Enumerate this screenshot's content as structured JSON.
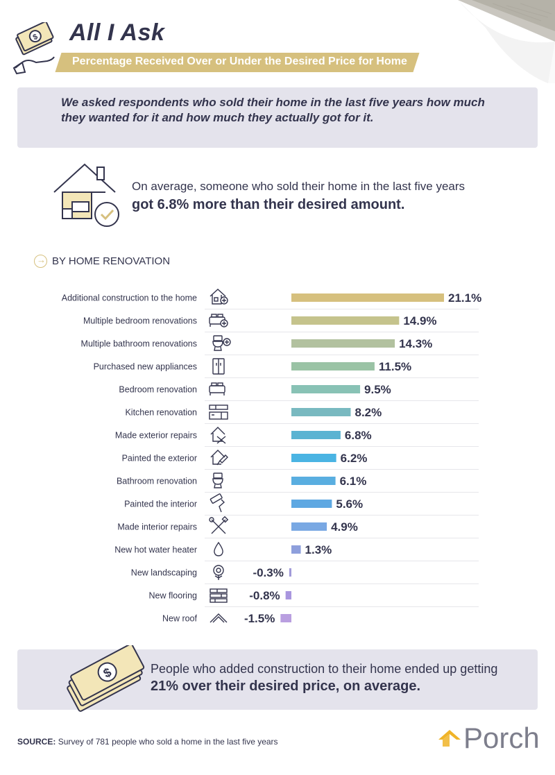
{
  "header": {
    "title": "All I Ask",
    "subtitle": "Percentage Received Over or Under the Desired Price for Home"
  },
  "intro": {
    "text": "We asked respondents who sold their home in the last five years how much they wanted for it and how much they actually got for it."
  },
  "average": {
    "line1": "On average, someone who sold their home in the last five years",
    "line2": "got 6.8% more than their desired amount."
  },
  "section": {
    "label": "BY HOME RENOVATION"
  },
  "chart_data": {
    "type": "bar",
    "orientation": "horizontal",
    "categories": [
      "Additional construction to the home",
      "Multiple bedroom renovations",
      "Multiple bathroom renovations",
      "Purchased new appliances",
      "Bedroom renovation",
      "Kitchen renovation",
      "Made exterior repairs",
      "Painted the exterior",
      "Bathroom renovation",
      "Painted the interior",
      "Made interior repairs",
      "New hot water heater",
      "New landscaping",
      "New flooring",
      "New roof"
    ],
    "values": [
      21.1,
      14.9,
      14.3,
      11.5,
      9.5,
      8.2,
      6.8,
      6.2,
      6.1,
      5.6,
      4.9,
      1.3,
      -0.3,
      -0.8,
      -1.5
    ],
    "value_labels": [
      "21.1%",
      "14.9%",
      "14.3%",
      "11.5%",
      "9.5%",
      "8.2%",
      "6.8%",
      "6.2%",
      "6.1%",
      "5.6%",
      "4.9%",
      "1.3%",
      "-0.3%",
      "-0.8%",
      "-1.5%"
    ],
    "icons": [
      "house-plus-icon",
      "bed-plus-icon",
      "toilet-plus-icon",
      "fridge-icon",
      "bed-icon",
      "kitchen-icon",
      "house-tools-icon",
      "house-brush-icon",
      "toilet-icon",
      "paint-roller-icon",
      "tools-icon",
      "water-drop-icon",
      "flower-icon",
      "flooring-icon",
      "roof-icon"
    ],
    "colors": [
      "#d6c07e",
      "#c5c38c",
      "#b2c19f",
      "#9ac3a5",
      "#88c2b5",
      "#79b9c0",
      "#5ab3d2",
      "#4ab4e3",
      "#59aee0",
      "#5ea8e2",
      "#79a8e3",
      "#8e9fdc",
      "#a29bd9",
      "#a996df",
      "#b99fe0"
    ],
    "xlim": [
      -1.5,
      21.1
    ],
    "grid": false
  },
  "bottom": {
    "line1": "People who added construction to their home ended up getting",
    "line2": "21% over their desired price, on average."
  },
  "source": {
    "label": "SOURCE:",
    "text": "Survey of 781 people who sold a home in the last five years"
  },
  "logo": {
    "text": "Porch"
  }
}
